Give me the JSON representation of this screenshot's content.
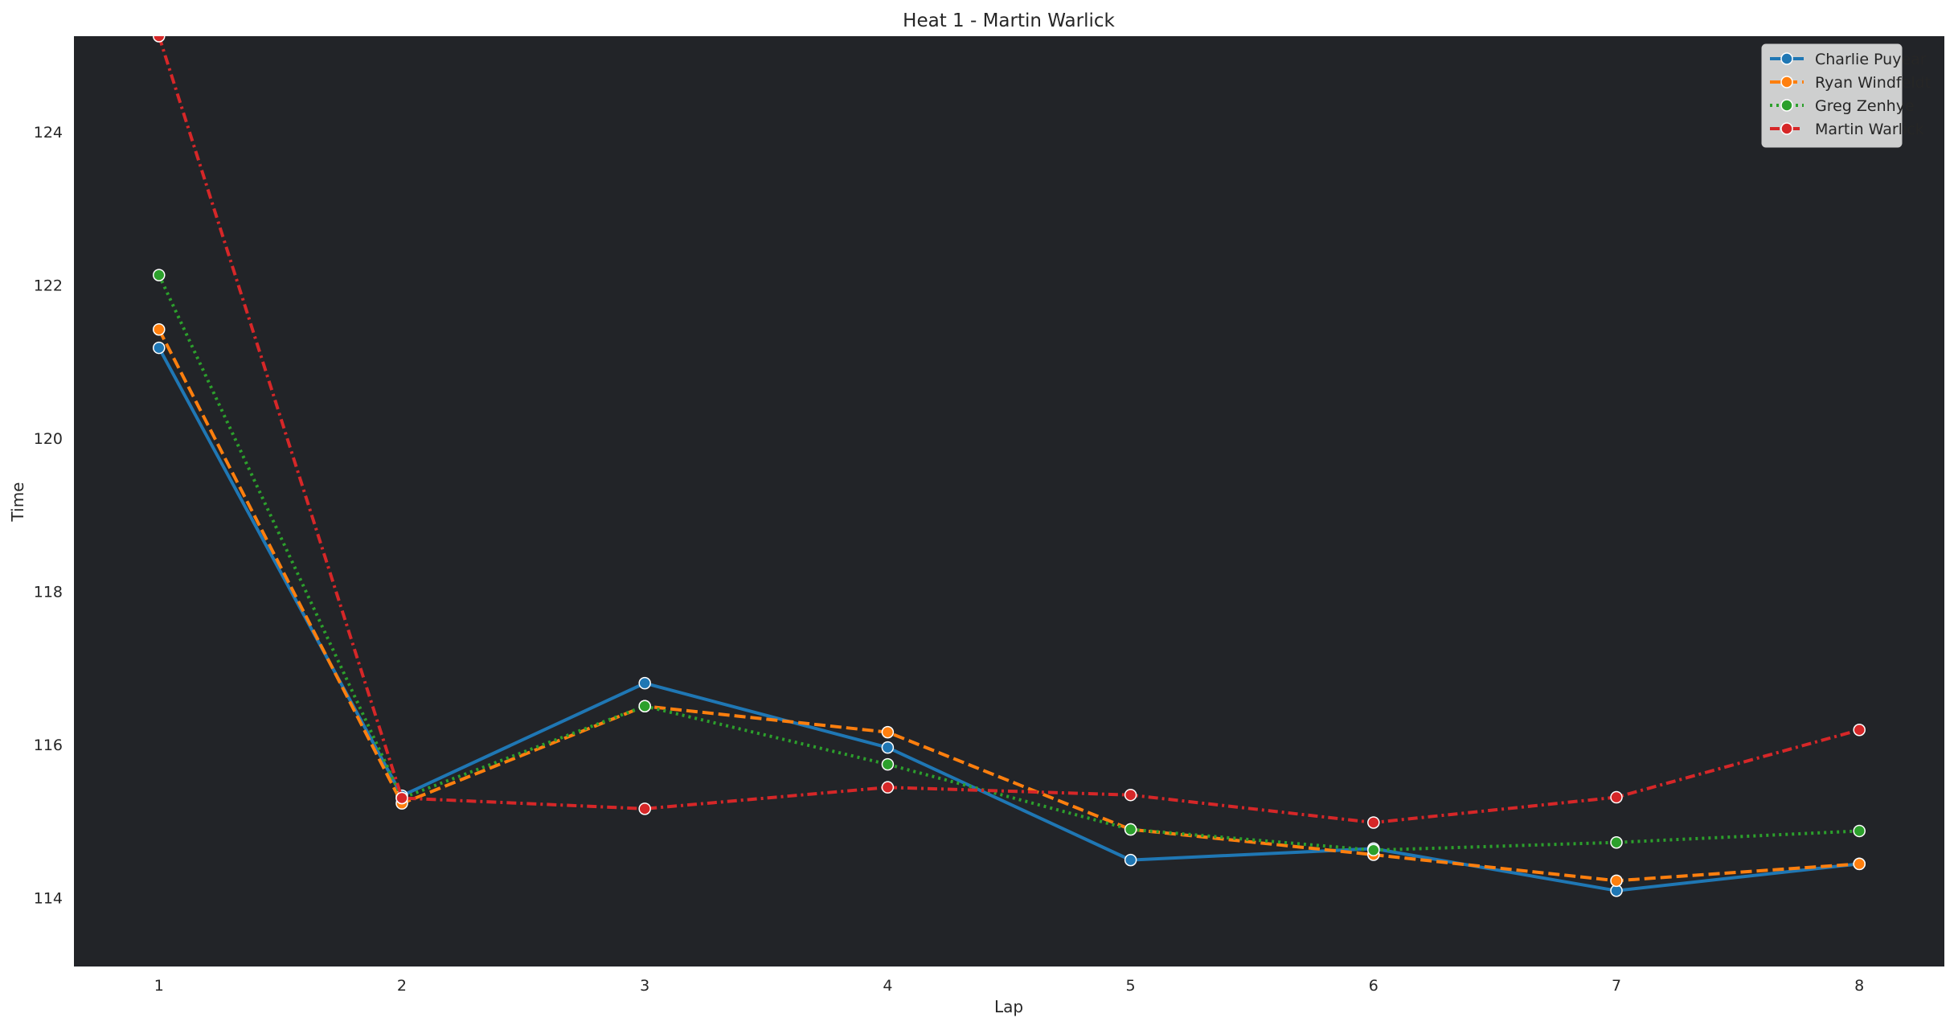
{
  "chart_data": {
    "type": "line",
    "title": "Heat 1 - Martin Warlick",
    "xlabel": "Lap",
    "ylabel": "Time",
    "x": [
      1,
      2,
      3,
      4,
      5,
      6,
      7,
      8
    ],
    "xlim": [
      0.65,
      8.35
    ],
    "ylim": [
      113.1,
      125.25
    ],
    "yticks": [
      114,
      116,
      118,
      120,
      122,
      124
    ],
    "grid": false,
    "legend_position": "top-right",
    "background_color": "#222428",
    "series": [
      {
        "name": "Charlie Puyear",
        "color": "#1f77b4",
        "dash": "solid",
        "values": [
          121.18,
          115.33,
          116.8,
          115.96,
          114.49,
          114.64,
          114.09,
          114.44
        ]
      },
      {
        "name": "Ryan Windfeldt",
        "color": "#ff7f0e",
        "dash": "dashed",
        "values": [
          121.42,
          115.23,
          116.5,
          116.16,
          114.89,
          114.56,
          114.22,
          114.44
        ]
      },
      {
        "name": "Greg Zenhye",
        "color": "#2ca02c",
        "dash": "dotted",
        "values": [
          122.13,
          115.3,
          116.5,
          115.74,
          114.89,
          114.62,
          114.72,
          114.87
        ]
      },
      {
        "name": "Martin Warlick",
        "color": "#d62728",
        "dash": "dashdot",
        "values": [
          125.25,
          115.3,
          115.16,
          115.44,
          115.34,
          114.98,
          115.31,
          116.19
        ]
      }
    ]
  }
}
